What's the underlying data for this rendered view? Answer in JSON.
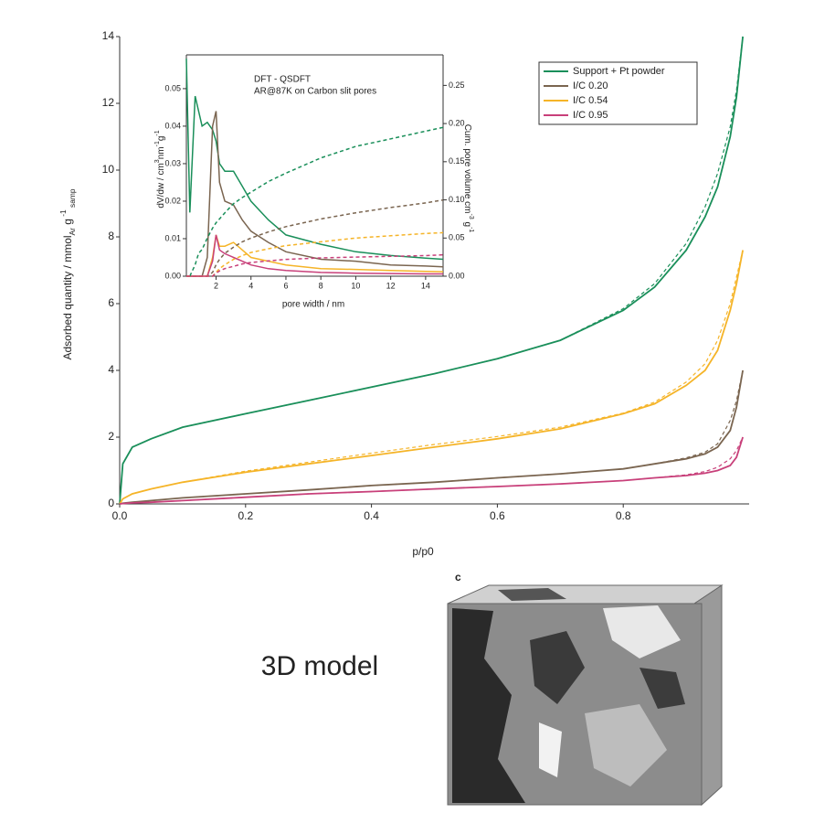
{
  "chart_data": [
    {
      "type": "line",
      "xlabel": "p/p0",
      "ylabel": [
        "Adsorbed quantity / mmol",
        "Ar",
        " g",
        " -1",
        " samp"
      ],
      "x": [
        0,
        0.005,
        0.02,
        0.05,
        0.1,
        0.2,
        0.3,
        0.4,
        0.5,
        0.6,
        0.7,
        0.8,
        0.85,
        0.9,
        0.93,
        0.95,
        0.97,
        0.98,
        0.99
      ],
      "xlim": [
        0,
        1.0
      ],
      "xticks": [
        {
          "value": 0,
          "label": "0.0"
        },
        0.2,
        0.4,
        0.6,
        0.8
      ],
      "ylim": [
        0,
        14
      ],
      "yticks": [
        0,
        2,
        4,
        6,
        8,
        10,
        12,
        14
      ],
      "legend": "upper right",
      "series": [
        {
          "name": "Support + Pt powder",
          "color": "#1a8f5a",
          "values": [
            0,
            1.2,
            1.7,
            1.95,
            2.3,
            2.7,
            3.1,
            3.5,
            3.9,
            4.35,
            4.9,
            5.8,
            6.5,
            7.6,
            8.6,
            9.5,
            11.0,
            12.2,
            14.0
          ],
          "fit": [
            0,
            1.2,
            1.7,
            1.95,
            2.3,
            2.7,
            3.1,
            3.5,
            3.9,
            4.35,
            4.9,
            5.85,
            6.6,
            7.8,
            8.9,
            9.9,
            11.3,
            12.4,
            14.0
          ]
        },
        {
          "name": "I/C 0.20",
          "color": "#7a6550",
          "values": [
            0,
            0.02,
            0.05,
            0.1,
            0.18,
            0.3,
            0.42,
            0.55,
            0.65,
            0.78,
            0.9,
            1.05,
            1.2,
            1.35,
            1.5,
            1.7,
            2.2,
            2.9,
            4.0
          ],
          "fit": [
            0,
            0.02,
            0.05,
            0.1,
            0.18,
            0.3,
            0.42,
            0.55,
            0.65,
            0.78,
            0.9,
            1.05,
            1.2,
            1.38,
            1.55,
            1.8,
            2.5,
            3.1,
            4.0
          ]
        },
        {
          "name": "I/C 0.54",
          "color": "#f5b428",
          "values": [
            0,
            0.15,
            0.3,
            0.45,
            0.65,
            0.95,
            1.2,
            1.45,
            1.7,
            1.95,
            2.25,
            2.7,
            3.0,
            3.55,
            4.0,
            4.6,
            5.8,
            6.6,
            7.6
          ],
          "fit": [
            0,
            0.15,
            0.3,
            0.45,
            0.65,
            0.98,
            1.25,
            1.52,
            1.78,
            2.02,
            2.3,
            2.72,
            3.05,
            3.65,
            4.2,
            4.9,
            6.0,
            6.8,
            7.6
          ]
        },
        {
          "name": "I/C 0.95",
          "color": "#c8407a",
          "values": [
            0,
            0.01,
            0.03,
            0.05,
            0.1,
            0.2,
            0.3,
            0.37,
            0.45,
            0.52,
            0.6,
            0.7,
            0.78,
            0.85,
            0.92,
            1.0,
            1.15,
            1.4,
            2.0
          ],
          "fit": [
            0,
            0.01,
            0.03,
            0.05,
            0.1,
            0.2,
            0.3,
            0.37,
            0.45,
            0.52,
            0.6,
            0.7,
            0.78,
            0.87,
            0.97,
            1.1,
            1.35,
            1.6,
            2.0
          ]
        }
      ]
    },
    {
      "type": "line",
      "annotations": [
        "DFT - QSDFT",
        "AR@87K on Carbon slit pores"
      ],
      "xlabel": "pore width / nm",
      "ylabel": [
        "dV/dw / cm",
        "3",
        "nm",
        "-1",
        "g",
        "-1"
      ],
      "y2label": [
        "Cum. pore volume cm",
        "-3",
        " g",
        "-1"
      ],
      "x": [
        0.3,
        0.5,
        0.8,
        1.0,
        1.2,
        1.5,
        1.8,
        2.0,
        2.2,
        2.5,
        3,
        3.5,
        4,
        5,
        6,
        8,
        10,
        12,
        14,
        15
      ],
      "xlim": [
        0.3,
        15
      ],
      "xticks": [
        2,
        4,
        6,
        8,
        10,
        12,
        14
      ],
      "ylim": [
        0,
        0.059
      ],
      "yticks": [
        {
          "value": 0,
          "label": "0.00"
        },
        0.01,
        0.02,
        0.03,
        0.04,
        0.05
      ],
      "y2lim": [
        0,
        0.29
      ],
      "y2ticks": [
        {
          "value": 0,
          "label": "0.00"
        },
        0.05,
        {
          "value": 0.1,
          "label": "0.10"
        },
        0.15,
        {
          "value": 0.2,
          "label": "0.20"
        },
        0.25
      ],
      "series": [
        {
          "color": "#1a8f5a",
          "values": [
            0.058,
            0.017,
            0.048,
            0.044,
            0.04,
            0.041,
            0.039,
            0.036,
            0.03,
            0.028,
            0.028,
            0.024,
            0.02,
            0.015,
            0.011,
            0.0085,
            0.0065,
            0.0055,
            0.0048,
            0.0045
          ]
        },
        {
          "color": "#7a6550",
          "values": [
            0,
            0,
            0,
            0,
            0,
            0.005,
            0.04,
            0.044,
            0.025,
            0.02,
            0.019,
            0.015,
            0.012,
            0.009,
            0.0065,
            0.0045,
            0.004,
            0.003,
            0.0027,
            0.0025
          ]
        },
        {
          "color": "#f5b428",
          "values": [
            0,
            0,
            0,
            0,
            0,
            0,
            0.005,
            0.011,
            0.008,
            0.008,
            0.009,
            0.007,
            0.005,
            0.004,
            0.003,
            0.002,
            0.0018,
            0.0015,
            0.0013,
            0.0012
          ]
        },
        {
          "color": "#c8407a",
          "values": [
            0,
            0,
            0,
            0,
            0,
            0,
            0.004,
            0.011,
            0.007,
            0.006,
            0.005,
            0.004,
            0.003,
            0.002,
            0.0015,
            0.001,
            0.0008,
            0.0007,
            0.0006,
            0.0006
          ]
        },
        {
          "color": "#1a8f5a",
          "axis": "y2",
          "dashed": true,
          "values": [
            null,
            0,
            0.015,
            0.03,
            0.035,
            0.05,
            0.063,
            0.07,
            0.075,
            0.083,
            0.095,
            0.103,
            0.11,
            0.124,
            0.135,
            0.155,
            0.17,
            0.18,
            0.19,
            0.195
          ]
        },
        {
          "color": "#7a6550",
          "axis": "y2",
          "dashed": true,
          "values": [
            0,
            0,
            0,
            0,
            0,
            0,
            0.005,
            0.015,
            0.022,
            0.03,
            0.038,
            0.045,
            0.05,
            0.058,
            0.065,
            0.075,
            0.083,
            0.09,
            0.096,
            0.1
          ]
        },
        {
          "color": "#f5b428",
          "axis": "y2",
          "dashed": true,
          "values": [
            0,
            0,
            0,
            0,
            0,
            0,
            0,
            0.005,
            0.01,
            0.015,
            0.022,
            0.027,
            0.031,
            0.036,
            0.04,
            0.045,
            0.05,
            0.053,
            0.056,
            0.057
          ]
        },
        {
          "color": "#c8407a",
          "axis": "y2",
          "dashed": true,
          "values": [
            0,
            0,
            0,
            0,
            0,
            0,
            0,
            0.004,
            0.007,
            0.01,
            0.013,
            0.016,
            0.018,
            0.02,
            0.022,
            0.024,
            0.025,
            0.026,
            0.027,
            0.028
          ]
        }
      ]
    }
  ],
  "figure": {
    "caption": "3D model",
    "panel": "c"
  }
}
